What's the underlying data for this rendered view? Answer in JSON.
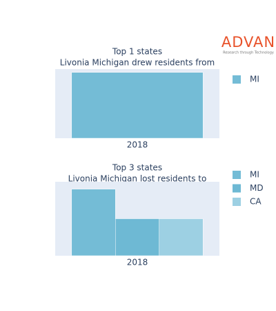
{
  "logo": {
    "name": "ADVAN",
    "tagline": "Research through Technology"
  },
  "chart_data": [
    {
      "type": "bar",
      "title": "Top 1 states",
      "subtitle": "Livonia Michigan drew residents from",
      "categories": [
        "2018"
      ],
      "series": [
        {
          "name": "MI",
          "color": "#74bcd6",
          "values": [
            1
          ]
        }
      ],
      "ylim": [
        0,
        1.05
      ]
    },
    {
      "type": "bar",
      "title": "Top 3 states",
      "subtitle": "Livonia Michigan lost residents to",
      "categories": [
        "2018"
      ],
      "series": [
        {
          "name": "MI",
          "color": "#74bcd6",
          "values": [
            9
          ]
        },
        {
          "name": "MD",
          "color": "#6eb9d4",
          "values": [
            5
          ]
        },
        {
          "name": "CA",
          "color": "#9dd0e3",
          "values": [
            5
          ]
        }
      ],
      "ylim": [
        0,
        10
      ]
    }
  ]
}
